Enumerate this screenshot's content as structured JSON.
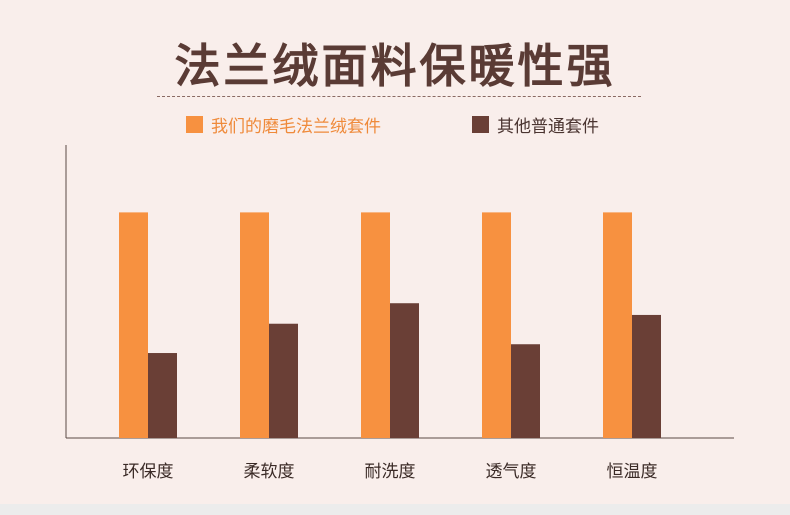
{
  "title": "法兰绒面料保暖性强",
  "colors": {
    "accent": "#f79140",
    "dark": "#6a3f36",
    "axis": "#5a4a46",
    "label": "#3a2a26"
  },
  "legend": [
    {
      "label": "我们的磨毛法兰绒套件",
      "color": "#f79140"
    },
    {
      "label": "其他普通套件",
      "color": "#6a3f36"
    }
  ],
  "chart_data": {
    "type": "bar",
    "title": "法兰绒面料保暖性强",
    "categories": [
      "环保度",
      "柔软度",
      "耐洗度",
      "透气度",
      "恒温度"
    ],
    "series": [
      {
        "name": "我们的磨毛法兰绒套件",
        "color": "#f79140",
        "values": [
          77,
          77,
          77,
          77,
          77
        ]
      },
      {
        "name": "其他普通套件",
        "color": "#6a3f36",
        "values": [
          29,
          39,
          46,
          32,
          42
        ]
      }
    ],
    "ylim": [
      0,
      100
    ],
    "grid": false,
    "legend_position": "top"
  }
}
